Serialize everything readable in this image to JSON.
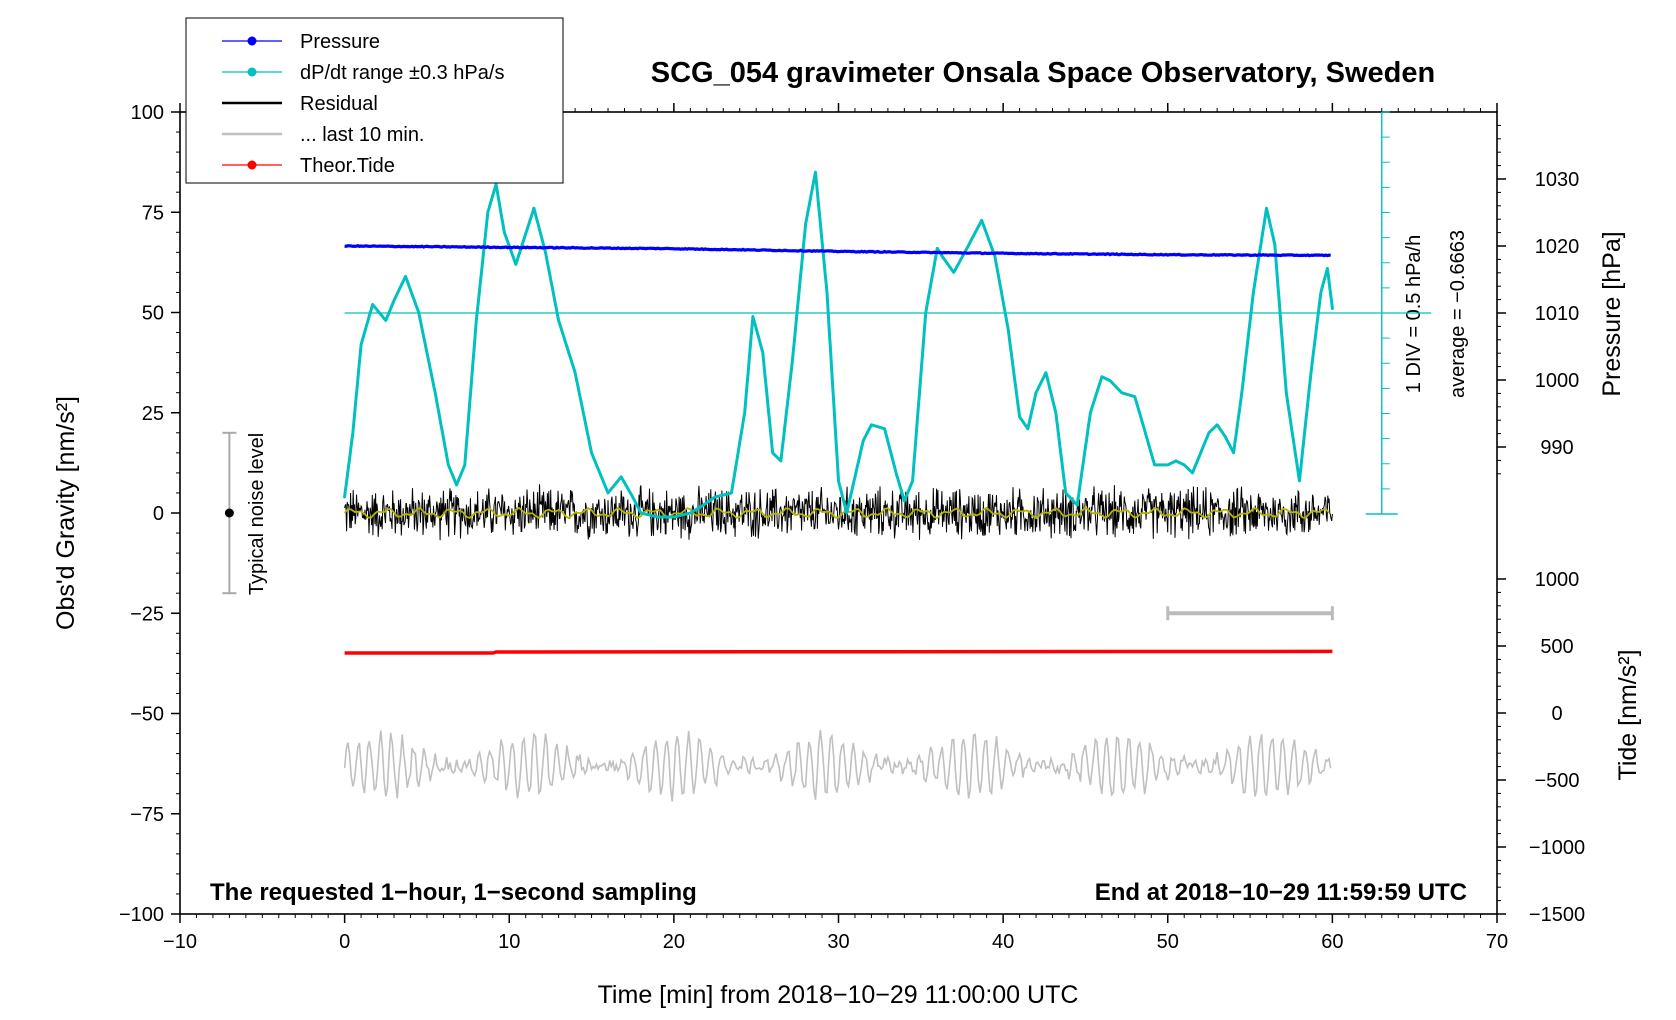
{
  "chart_data": {
    "type": "line",
    "title": "SCG_054 gravimeter Onsala Space Observatory, Sweden",
    "xlabel": "Time [min] from 2018−10−29 11:00:00 UTC",
    "ylabel_left": "Obs'd Gravity [nm/s²]",
    "ylabel_right_pressure": "Pressure [hPa]",
    "ylabel_right_tide": "Tide [nm/s²]",
    "xlim": [
      -10,
      70
    ],
    "ylim": [
      -100,
      100
    ],
    "pressure_lim": [
      970,
      1040
    ],
    "tide_lim": [
      -1500,
      1500
    ],
    "x_ticks": [
      "−10",
      "0",
      "10",
      "20",
      "30",
      "40",
      "50",
      "60",
      "70"
    ],
    "x_tick_values": [
      -10,
      0,
      10,
      20,
      30,
      40,
      50,
      60,
      70
    ],
    "y_ticks": [
      "100",
      "75",
      "50",
      "25",
      "0",
      "−25",
      "−50",
      "−75",
      "−100"
    ],
    "y_tick_values": [
      100,
      75,
      50,
      25,
      0,
      -25,
      -50,
      -75,
      -100
    ],
    "pressure_ticks": [
      "1030",
      "1020",
      "1010",
      "1000",
      "990"
    ],
    "pressure_tick_values": [
      1030,
      1020,
      1010,
      1000,
      990
    ],
    "tide_ticks": [
      "1000",
      "500",
      "0",
      "−500",
      "−1000",
      "−1500"
    ],
    "tide_tick_values": [
      1000,
      500,
      0,
      -500,
      -1000,
      -1500
    ],
    "legend_position": "top-left",
    "legend": [
      {
        "label": "Pressure",
        "color": "#0000ff",
        "marker": "dot"
      },
      {
        "label": "dP/dt range ±0.3 hPa/s",
        "color": "#00c0c0",
        "marker": "dot"
      },
      {
        "label": "Residual",
        "color": "#000000",
        "marker": "line"
      },
      {
        "label": "... last 10 min.",
        "color": "#c0c0c0",
        "marker": "line"
      },
      {
        "label": "Theor.Tide",
        "color": "#ff0000",
        "marker": "dot"
      }
    ],
    "series": [
      {
        "name": "Pressure",
        "axis": "pressure",
        "color": "#0000ff",
        "x": [
          0,
          10,
          20,
          30,
          40,
          50,
          60
        ],
        "y": [
          1020.0,
          1019.8,
          1019.6,
          1019.2,
          1018.9,
          1018.7,
          1018.6
        ]
      },
      {
        "name": "dP/dt range ±0.3 hPa/s",
        "axis": "gravity",
        "color": "#00c0c0",
        "x": [
          0,
          0.5,
          1,
          1.7,
          2.5,
          3,
          3.7,
          4.5,
          5.5,
          6.3,
          6.8,
          7.3,
          8,
          8.7,
          9.2,
          9.7,
          10.4,
          11.5,
          12.2,
          13,
          14,
          15,
          16,
          16.8,
          17.5,
          18,
          19,
          20,
          21,
          21.8,
          22.5,
          23.5,
          24.3,
          24.8,
          25.4,
          26,
          26.5,
          27.2,
          28,
          28.6,
          29.3,
          30,
          30.5,
          31.5,
          32,
          32.8,
          33.5,
          34,
          34.5,
          35.3,
          36,
          36.3,
          37,
          37.8,
          38.7,
          39.5,
          40.3,
          41,
          41.5,
          42,
          42.6,
          43.2,
          43.8,
          44.5,
          45.3,
          46,
          46.5,
          47.2,
          48,
          48.5,
          49.2,
          50,
          50.5,
          51,
          51.5,
          52,
          52.5,
          53,
          53.5,
          54,
          54.5,
          55.2,
          56,
          56.5,
          57.2,
          58,
          58.7,
          59.3,
          59.7,
          60
        ],
        "y": [
          4,
          20,
          42,
          52,
          48,
          53,
          59,
          50,
          30,
          12,
          7,
          12,
          48,
          75,
          82,
          70,
          62,
          76,
          65,
          48,
          35,
          15,
          5,
          9,
          4,
          0,
          -1,
          -1,
          0,
          2,
          4,
          5,
          25,
          49,
          40,
          15,
          13,
          38,
          72,
          85,
          55,
          8,
          0,
          18,
          22,
          21,
          10,
          3,
          8,
          50,
          66,
          64,
          60,
          66,
          73,
          64,
          46,
          24,
          21,
          30,
          35,
          25,
          5,
          2,
          25,
          34,
          33,
          30,
          29,
          22,
          12,
          12,
          13,
          12,
          10,
          15,
          20,
          22,
          19,
          15,
          30,
          55,
          76,
          67,
          30,
          8,
          35,
          55,
          61,
          51
        ]
      },
      {
        "name": "Residual",
        "axis": "gravity",
        "color": "#000000",
        "x": [
          0,
          60
        ],
        "y": [
          0,
          0
        ],
        "noise_amplitude": 5
      },
      {
        "name": "... last 10 min.",
        "axis": "gravity",
        "color": "#c0c0c0",
        "x": [
          0,
          60
        ],
        "y": [
          -63,
          -63
        ],
        "noise_amplitude": 7
      },
      {
        "name": "Theor.Tide",
        "axis": "tide",
        "color": "#ff0000",
        "x": [
          0,
          9,
          9.2,
          60
        ],
        "y": [
          448,
          448,
          455,
          460
        ]
      }
    ],
    "smoothed_residual": {
      "color": "#b4b400",
      "x": [
        0,
        60
      ],
      "y": [
        0,
        0
      ]
    },
    "noise_bar": {
      "x": -7,
      "y_low": -20,
      "y_high": 20,
      "center": 0,
      "label": "Typical noise level"
    },
    "last10_bar": {
      "x_start": 50,
      "x_end": 60,
      "y": -25
    },
    "pressure_reference_line": {
      "y": 1010,
      "color": "#00c0c0"
    },
    "dpdt_scale_bar": {
      "x": 63,
      "pressure_bottom": 980,
      "pressure_top": 1040,
      "label_top": "1 DIV = 0.5 hPa/h",
      "label_bottom": "average = −0.6663"
    },
    "annotation_left": "The requested 1−hour, 1−second sampling",
    "annotation_right": "End at 2018−10−29 11:59:59 UTC",
    "grid": false
  }
}
